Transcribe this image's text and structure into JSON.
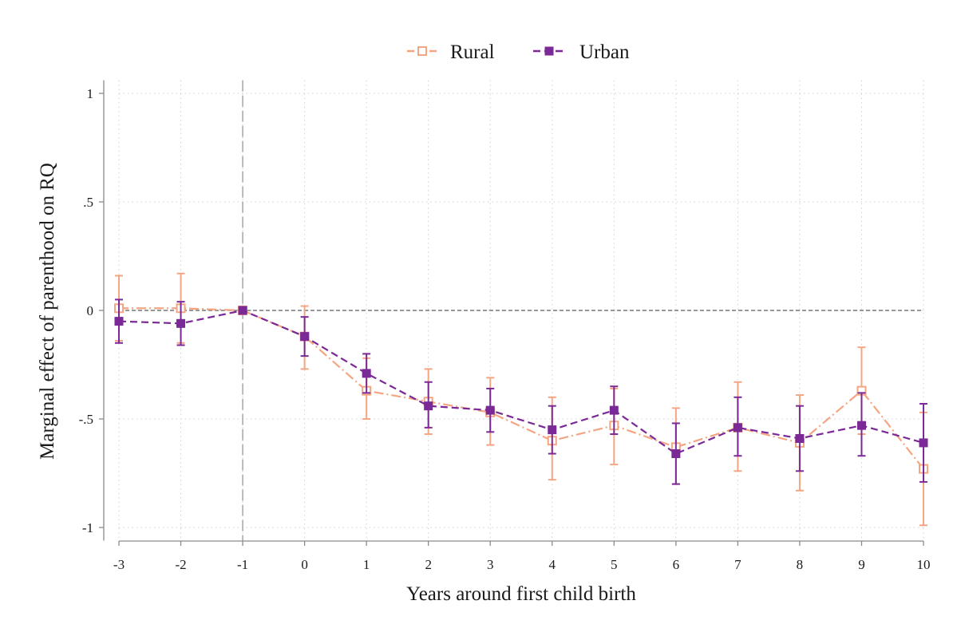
{
  "chart_data": {
    "type": "line",
    "x": [
      -3,
      -2,
      -1,
      0,
      1,
      2,
      3,
      4,
      5,
      6,
      7,
      8,
      9,
      10
    ],
    "x_tick_labels": [
      "-3",
      "-2",
      "-1",
      "0",
      "1",
      "2",
      "3",
      "4",
      "5",
      "6",
      "7",
      "8",
      "9",
      "10"
    ],
    "y_ticks": [
      1,
      0.5,
      0,
      -0.5,
      -1
    ],
    "y_tick_labels": [
      "1",
      ".5",
      "0",
      "-.5",
      "-1"
    ],
    "xlabel": "Years around first child birth",
    "ylabel": "Marginal effect of parenthood on RQ",
    "xlim": [
      -3,
      10
    ],
    "ylim": [
      -1.06,
      1.06
    ],
    "grid": true,
    "reference_lines": {
      "horizontal_y": 0,
      "vertical_x": -1
    },
    "legend_position": "top-center",
    "series": [
      {
        "name": "Rural",
        "color": "#F4A582",
        "marker": "hollow-square",
        "line_style": "dash-dot",
        "values": [
          0.01,
          0.01,
          0.0,
          -0.12,
          -0.37,
          -0.42,
          -0.47,
          -0.6,
          -0.53,
          -0.63,
          -0.54,
          -0.61,
          -0.37,
          -0.73
        ],
        "ci_low": [
          -0.14,
          -0.15,
          0.0,
          -0.27,
          -0.5,
          -0.57,
          -0.62,
          -0.78,
          -0.71,
          -0.8,
          -0.74,
          -0.83,
          -0.57,
          -0.99
        ],
        "ci_high": [
          0.16,
          0.17,
          0.0,
          0.02,
          -0.22,
          -0.27,
          -0.31,
          -0.4,
          -0.36,
          -0.45,
          -0.33,
          -0.39,
          -0.17,
          -0.47
        ]
      },
      {
        "name": "Urban",
        "color": "#7B2996",
        "marker": "filled-square",
        "line_style": "dash",
        "values": [
          -0.05,
          -0.06,
          0.0,
          -0.12,
          -0.29,
          -0.44,
          -0.46,
          -0.55,
          -0.46,
          -0.66,
          -0.54,
          -0.59,
          -0.53,
          -0.61
        ],
        "ci_low": [
          -0.15,
          -0.16,
          0.0,
          -0.21,
          -0.38,
          -0.54,
          -0.56,
          -0.66,
          -0.57,
          -0.8,
          -0.67,
          -0.74,
          -0.67,
          -0.79
        ],
        "ci_high": [
          0.05,
          0.04,
          0.0,
          -0.03,
          -0.2,
          -0.33,
          -0.36,
          -0.44,
          -0.35,
          -0.52,
          -0.4,
          -0.44,
          -0.38,
          -0.43
        ]
      }
    ]
  }
}
